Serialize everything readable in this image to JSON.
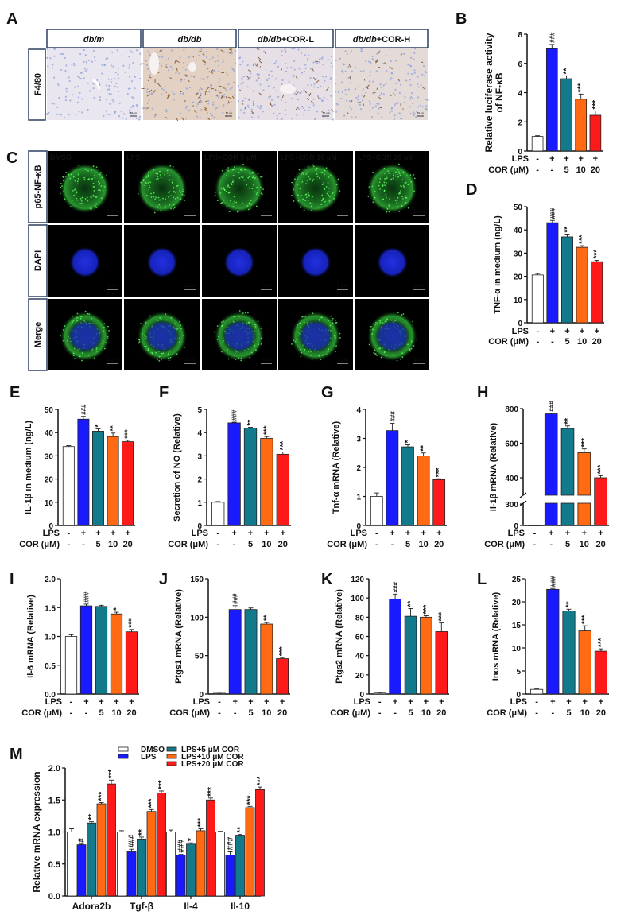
{
  "panel_letters": [
    "A",
    "B",
    "C",
    "D",
    "E",
    "F",
    "G",
    "H",
    "I",
    "J",
    "K",
    "L",
    "M"
  ],
  "panel_a": {
    "columns": [
      {
        "italic": "db/m",
        "rest": ""
      },
      {
        "italic": "db/db",
        "rest": ""
      },
      {
        "italic": "db/db",
        "rest": "+COR-L"
      },
      {
        "italic": "db/db",
        "rest": "+COR-H"
      }
    ],
    "row_label": "F4/80",
    "scale_bar": "50 μm"
  },
  "panel_c": {
    "columns": [
      "DMSO",
      "LPS",
      "LPS+COR 5 μM",
      "LPS+COR 10 μM",
      "LPS+COR 20 μM"
    ],
    "rows": [
      "p65-NF-κB",
      "DAPI",
      "Merge"
    ],
    "row_colors": [
      "#22b14c",
      "#2a2aff",
      "#22b14c"
    ],
    "scale_bar": "5 μm"
  },
  "conditions": [
    {
      "label": "LPS",
      "values": [
        "-",
        "+",
        "+",
        "+",
        "+"
      ]
    },
    {
      "label": "COR (μM)",
      "values": [
        "-",
        "-",
        "5",
        "10",
        "20"
      ]
    }
  ],
  "colors": [
    "#ffffff",
    "#1a1aff",
    "#137a8c",
    "#ff6a12",
    "#ff1a1a"
  ],
  "chart_data": [
    {
      "panel": "B",
      "type": "bar",
      "ylabel": [
        "Relative luciferase activity",
        "of NF-κB"
      ],
      "values": [
        1.0,
        7.0,
        4.95,
        3.55,
        2.45
      ],
      "errors": [
        0.05,
        0.3,
        0.2,
        0.35,
        0.3
      ],
      "significance": [
        "",
        "###",
        "**",
        "***",
        "***"
      ],
      "ylim": [
        0,
        8
      ],
      "yticks": [
        "0",
        "2",
        "4",
        "6",
        "8"
      ]
    },
    {
      "panel": "D",
      "type": "bar",
      "ylabel": [
        "TNF-α in medium (ng/L)"
      ],
      "values": [
        20.6,
        43.1,
        37.0,
        32.5,
        26.3
      ],
      "errors": [
        0.6,
        1.0,
        1.2,
        0.7,
        0.6
      ],
      "significance": [
        "",
        "###",
        "**",
        "***",
        "***"
      ],
      "ylim": [
        0,
        50
      ],
      "yticks": [
        "0",
        "10",
        "20",
        "30",
        "40",
        "50"
      ]
    },
    {
      "panel": "E",
      "type": "bar",
      "ylabel": [
        "IL-1β in medium (ng/L)"
      ],
      "values": [
        34.0,
        45.8,
        40.6,
        38.3,
        36.1
      ],
      "errors": [
        0.4,
        1.2,
        1.0,
        1.5,
        0.6
      ],
      "significance": [
        "",
        "###",
        "*",
        "**",
        "***"
      ],
      "ylim": [
        0,
        50
      ],
      "yticks": [
        "0",
        "10",
        "20",
        "30",
        "40",
        "50"
      ]
    },
    {
      "panel": "F",
      "type": "bar",
      "ylabel": [
        "Secretion of NO (Relative)"
      ],
      "values": [
        1.0,
        4.42,
        4.2,
        3.75,
        3.07
      ],
      "errors": [
        0.03,
        0.03,
        0.03,
        0.08,
        0.1
      ],
      "significance": [
        "",
        "###",
        "**",
        "***",
        "***"
      ],
      "ylim": [
        0,
        5
      ],
      "yticks": [
        "0",
        "1",
        "2",
        "3",
        "4",
        "5"
      ]
    },
    {
      "panel": "G",
      "type": "bar",
      "ylabel": [
        "Tnf-α mRNA (Relative)"
      ],
      "values": [
        1.0,
        3.27,
        2.71,
        2.4,
        1.58
      ],
      "errors": [
        0.12,
        0.25,
        0.07,
        0.1,
        0.03
      ],
      "significance": [
        "",
        "###",
        "*",
        "**",
        "***"
      ],
      "ylim": [
        0,
        4
      ],
      "yticks": [
        "0",
        "1",
        "2",
        "3",
        "4"
      ]
    },
    {
      "panel": "H",
      "type": "bar",
      "ylabel": [
        "Il-1β mRNA (Relative)"
      ],
      "values": [
        1.0,
        770,
        685,
        545,
        400
      ],
      "errors": [
        0.1,
        4,
        15,
        22,
        12
      ],
      "significance": [
        "",
        "###",
        "**",
        "***",
        "***"
      ],
      "ylim": [
        0,
        800
      ],
      "axis_break": [
        300,
        400
      ],
      "yticks": [
        "0",
        "300",
        "400",
        "600",
        "800"
      ]
    },
    {
      "panel": "I",
      "type": "bar",
      "ylabel": [
        "Il-6 mRNA (Relative)"
      ],
      "values": [
        1.0,
        1.53,
        1.52,
        1.39,
        1.08
      ],
      "errors": [
        0.03,
        0.03,
        0.02,
        0.03,
        0.04
      ],
      "significance": [
        "",
        "###",
        "",
        "*",
        "***"
      ],
      "ylim": [
        0,
        2.0
      ],
      "yticks": [
        "0.0",
        "0.5",
        "1.0",
        "1.5",
        "2.0"
      ]
    },
    {
      "panel": "J",
      "type": "bar",
      "ylabel": [
        "Ptgs1 mRNA (Relative)"
      ],
      "values": [
        1.0,
        110,
        110,
        91,
        46
      ],
      "errors": [
        0.1,
        5,
        2,
        2,
        1.5
      ],
      "significance": [
        "",
        "###",
        "",
        "**",
        "***"
      ],
      "ylim": [
        0,
        150
      ],
      "yticks": [
        "0",
        "50",
        "100",
        "150"
      ]
    },
    {
      "panel": "K",
      "type": "bar",
      "ylabel": [
        "Ptgs2 mRNA (Relative)"
      ],
      "values": [
        1.0,
        99,
        81,
        80,
        65
      ],
      "errors": [
        0.1,
        5,
        8,
        1.5,
        9
      ],
      "significance": [
        "",
        "###",
        "**",
        "***",
        "***"
      ],
      "ylim": [
        0,
        120
      ],
      "yticks": [
        "0",
        "20",
        "40",
        "60",
        "80",
        "100",
        "120"
      ]
    },
    {
      "panel": "L",
      "type": "bar",
      "ylabel": [
        "Inos mRNA (Relative)"
      ],
      "values": [
        1.0,
        22.7,
        18.0,
        13.7,
        9.3
      ],
      "errors": [
        0.1,
        0.2,
        0.4,
        1.1,
        0.5
      ],
      "significance": [
        "",
        "###",
        "**",
        "***",
        "***"
      ],
      "ylim": [
        0,
        25
      ],
      "yticks": [
        "0",
        "5",
        "10",
        "15",
        "20",
        "25"
      ]
    },
    {
      "panel": "M",
      "type": "grouped_bar",
      "ylabel": [
        "Relative mRNA expression"
      ],
      "categories": [
        "Adora2b",
        "Tgf-β",
        "Il-4",
        "Il-10"
      ],
      "ylim": [
        0,
        2.0
      ],
      "yticks": [
        "0.0",
        "0.5",
        "1.0",
        "1.5",
        "2.0"
      ],
      "legend_position": "top",
      "series": [
        {
          "name": "DMSO",
          "values": [
            1.0,
            1.0,
            1.0,
            1.0
          ],
          "errors": [
            0.05,
            0.02,
            0.03,
            0.01
          ],
          "significance": [
            "",
            "",
            "",
            ""
          ]
        },
        {
          "name": "LPS",
          "values": [
            0.8,
            0.69,
            0.64,
            0.64
          ],
          "errors": [
            0.01,
            0.04,
            0.01,
            0.05
          ],
          "significance": [
            "#",
            "###",
            "###",
            "###"
          ]
        },
        {
          "name": "LPS+5 μM COR",
          "values": [
            1.14,
            0.89,
            0.81,
            0.95
          ],
          "errors": [
            0.02,
            0.03,
            0.02,
            0.01
          ],
          "significance": [
            "**",
            "**",
            "*",
            "**"
          ]
        },
        {
          "name": "LPS+10 μM COR",
          "values": [
            1.44,
            1.32,
            1.02,
            1.38
          ],
          "errors": [
            0.02,
            0.03,
            0.03,
            0.02
          ],
          "significance": [
            "***",
            "***",
            "***",
            "***"
          ]
        },
        {
          "name": "LPS+20 μM COR",
          "values": [
            1.75,
            1.61,
            1.5,
            1.66
          ],
          "errors": [
            0.06,
            0.03,
            0.03,
            0.04
          ],
          "significance": [
            "***",
            "***",
            "***",
            "***"
          ]
        }
      ]
    }
  ]
}
